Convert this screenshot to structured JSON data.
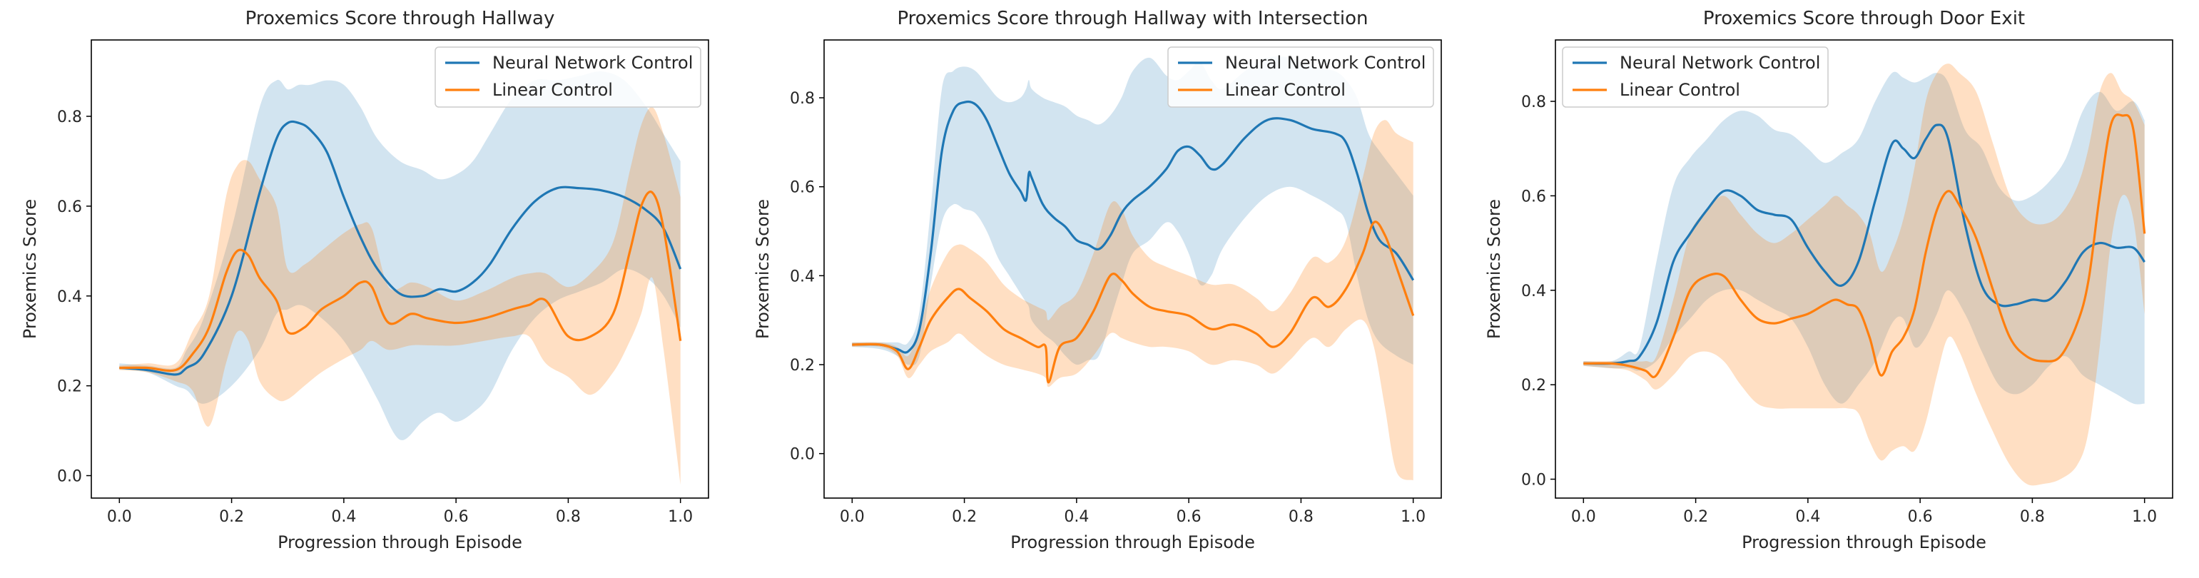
{
  "colors": {
    "nn": "#1f77b4",
    "linear": "#ff7f0e",
    "nn_fill": "#1f77b4",
    "linear_fill": "#ff7f0e"
  },
  "chart_data": [
    {
      "type": "line",
      "title": "Proxemics Score through Hallway",
      "xlabel": "Progression through Episode",
      "ylabel": "Proxemics Score",
      "xlim": [
        -0.05,
        1.05
      ],
      "ylim": [
        -0.05,
        0.97
      ],
      "xticks": [
        "0.0",
        "0.2",
        "0.4",
        "0.6",
        "0.8",
        "1.0"
      ],
      "yticks": [
        "0.0",
        "0.2",
        "0.4",
        "0.6",
        "0.8"
      ],
      "legend": {
        "position": "top-right",
        "entries": [
          "Neural Network Control",
          "Linear Control"
        ]
      },
      "series": [
        {
          "name": "Neural Network Control",
          "x": [
            0.0,
            0.05,
            0.1,
            0.12,
            0.15,
            0.2,
            0.25,
            0.28,
            0.3,
            0.32,
            0.34,
            0.37,
            0.4,
            0.43,
            0.46,
            0.5,
            0.54,
            0.57,
            0.6,
            0.63,
            0.66,
            0.7,
            0.74,
            0.78,
            0.82,
            0.86,
            0.9,
            0.94,
            0.97,
            1.0
          ],
          "y": [
            0.24,
            0.235,
            0.225,
            0.24,
            0.27,
            0.4,
            0.63,
            0.75,
            0.785,
            0.785,
            0.77,
            0.72,
            0.62,
            0.53,
            0.46,
            0.405,
            0.4,
            0.415,
            0.41,
            0.43,
            0.47,
            0.55,
            0.61,
            0.64,
            0.64,
            0.635,
            0.62,
            0.59,
            0.55,
            0.46
          ],
          "lower": [
            0.24,
            0.23,
            0.2,
            0.19,
            0.16,
            0.2,
            0.28,
            0.36,
            0.37,
            0.38,
            0.37,
            0.34,
            0.3,
            0.24,
            0.17,
            0.08,
            0.12,
            0.14,
            0.12,
            0.14,
            0.18,
            0.28,
            0.35,
            0.39,
            0.41,
            0.43,
            0.46,
            0.44,
            0.4,
            0.33
          ],
          "upper": [
            0.25,
            0.245,
            0.24,
            0.28,
            0.35,
            0.55,
            0.82,
            0.88,
            0.86,
            0.87,
            0.87,
            0.88,
            0.87,
            0.82,
            0.75,
            0.7,
            0.68,
            0.66,
            0.67,
            0.7,
            0.76,
            0.84,
            0.88,
            0.88,
            0.89,
            0.9,
            0.88,
            0.82,
            0.76,
            0.7
          ]
        },
        {
          "name": "Linear Control",
          "x": [
            0.0,
            0.05,
            0.1,
            0.13,
            0.16,
            0.19,
            0.21,
            0.23,
            0.25,
            0.28,
            0.3,
            0.33,
            0.36,
            0.4,
            0.43,
            0.45,
            0.48,
            0.52,
            0.55,
            0.6,
            0.65,
            0.7,
            0.73,
            0.76,
            0.8,
            0.84,
            0.88,
            0.91,
            0.93,
            0.95,
            0.97,
            1.0
          ],
          "y": [
            0.24,
            0.24,
            0.235,
            0.27,
            0.33,
            0.45,
            0.5,
            0.49,
            0.44,
            0.39,
            0.32,
            0.33,
            0.37,
            0.4,
            0.43,
            0.42,
            0.34,
            0.36,
            0.35,
            0.34,
            0.35,
            0.37,
            0.38,
            0.39,
            0.31,
            0.31,
            0.36,
            0.5,
            0.6,
            0.63,
            0.55,
            0.3
          ],
          "lower": [
            0.235,
            0.23,
            0.21,
            0.19,
            0.11,
            0.25,
            0.32,
            0.3,
            0.21,
            0.17,
            0.17,
            0.2,
            0.23,
            0.26,
            0.28,
            0.3,
            0.28,
            0.29,
            0.29,
            0.29,
            0.3,
            0.31,
            0.31,
            0.25,
            0.22,
            0.18,
            0.23,
            0.3,
            0.36,
            0.44,
            0.28,
            -0.02
          ],
          "upper": [
            0.245,
            0.25,
            0.25,
            0.32,
            0.4,
            0.62,
            0.69,
            0.7,
            0.66,
            0.6,
            0.46,
            0.47,
            0.5,
            0.54,
            0.56,
            0.55,
            0.42,
            0.43,
            0.42,
            0.39,
            0.41,
            0.44,
            0.45,
            0.45,
            0.42,
            0.45,
            0.52,
            0.68,
            0.78,
            0.82,
            0.76,
            0.62
          ]
        }
      ]
    },
    {
      "type": "line",
      "title": "Proxemics Score through Hallway with Intersection",
      "xlabel": "Progression through Episode",
      "ylabel": "Proxemics Score",
      "xlim": [
        -0.05,
        1.05
      ],
      "ylim": [
        -0.1,
        0.93
      ],
      "xticks": [
        "0.0",
        "0.2",
        "0.4",
        "0.6",
        "0.8",
        "1.0"
      ],
      "yticks": [
        "0.0",
        "0.2",
        "0.4",
        "0.6",
        "0.8"
      ],
      "legend": {
        "position": "top-right",
        "entries": [
          "Neural Network Control",
          "Linear Control"
        ]
      },
      "series": [
        {
          "name": "Neural Network Control",
          "x": [
            0.0,
            0.05,
            0.08,
            0.1,
            0.12,
            0.14,
            0.16,
            0.18,
            0.2,
            0.22,
            0.24,
            0.26,
            0.28,
            0.3,
            0.31,
            0.315,
            0.32,
            0.34,
            0.36,
            0.38,
            0.4,
            0.42,
            0.44,
            0.46,
            0.48,
            0.5,
            0.53,
            0.56,
            0.58,
            0.6,
            0.62,
            0.64,
            0.66,
            0.7,
            0.74,
            0.78,
            0.82,
            0.86,
            0.88,
            0.9,
            0.92,
            0.94,
            0.97,
            1.0
          ],
          "y": [
            0.245,
            0.245,
            0.235,
            0.23,
            0.28,
            0.45,
            0.68,
            0.77,
            0.79,
            0.785,
            0.75,
            0.69,
            0.63,
            0.59,
            0.57,
            0.63,
            0.62,
            0.56,
            0.53,
            0.51,
            0.48,
            0.47,
            0.46,
            0.49,
            0.54,
            0.57,
            0.6,
            0.64,
            0.68,
            0.69,
            0.67,
            0.64,
            0.65,
            0.71,
            0.75,
            0.75,
            0.73,
            0.72,
            0.7,
            0.63,
            0.54,
            0.48,
            0.45,
            0.39
          ],
          "lower": [
            0.24,
            0.235,
            0.22,
            0.2,
            0.22,
            0.38,
            0.52,
            0.56,
            0.55,
            0.54,
            0.5,
            0.44,
            0.4,
            0.36,
            0.34,
            0.33,
            0.3,
            0.27,
            0.25,
            0.22,
            0.2,
            0.21,
            0.22,
            0.3,
            0.38,
            0.45,
            0.48,
            0.52,
            0.5,
            0.45,
            0.38,
            0.4,
            0.46,
            0.53,
            0.58,
            0.6,
            0.58,
            0.55,
            0.52,
            0.4,
            0.3,
            0.25,
            0.22,
            0.2
          ],
          "upper": [
            0.25,
            0.25,
            0.25,
            0.25,
            0.32,
            0.55,
            0.82,
            0.86,
            0.87,
            0.86,
            0.83,
            0.8,
            0.79,
            0.8,
            0.82,
            0.84,
            0.82,
            0.8,
            0.79,
            0.78,
            0.76,
            0.75,
            0.74,
            0.76,
            0.8,
            0.86,
            0.89,
            0.85,
            0.84,
            0.86,
            0.88,
            0.84,
            0.82,
            0.86,
            0.89,
            0.89,
            0.87,
            0.86,
            0.84,
            0.8,
            0.72,
            0.68,
            0.63,
            0.58
          ]
        },
        {
          "name": "Linear Control",
          "x": [
            0.0,
            0.05,
            0.08,
            0.1,
            0.12,
            0.14,
            0.17,
            0.19,
            0.21,
            0.24,
            0.27,
            0.3,
            0.33,
            0.345,
            0.35,
            0.37,
            0.4,
            0.43,
            0.46,
            0.48,
            0.5,
            0.53,
            0.56,
            0.6,
            0.64,
            0.68,
            0.72,
            0.75,
            0.78,
            0.82,
            0.85,
            0.88,
            0.91,
            0.93,
            0.95,
            0.97,
            1.0
          ],
          "y": [
            0.245,
            0.245,
            0.23,
            0.19,
            0.24,
            0.3,
            0.35,
            0.37,
            0.35,
            0.32,
            0.28,
            0.26,
            0.24,
            0.24,
            0.16,
            0.24,
            0.26,
            0.32,
            0.4,
            0.39,
            0.36,
            0.33,
            0.32,
            0.31,
            0.28,
            0.29,
            0.27,
            0.24,
            0.27,
            0.35,
            0.33,
            0.37,
            0.45,
            0.52,
            0.49,
            0.42,
            0.31
          ],
          "lower": [
            0.24,
            0.24,
            0.22,
            0.17,
            0.2,
            0.23,
            0.25,
            0.27,
            0.25,
            0.22,
            0.2,
            0.19,
            0.18,
            0.17,
            0.15,
            0.17,
            0.18,
            0.22,
            0.27,
            0.26,
            0.25,
            0.24,
            0.24,
            0.23,
            0.2,
            0.21,
            0.2,
            0.18,
            0.21,
            0.26,
            0.24,
            0.28,
            0.3,
            0.24,
            0.1,
            -0.04,
            -0.06
          ],
          "upper": [
            0.25,
            0.25,
            0.24,
            0.22,
            0.28,
            0.37,
            0.45,
            0.47,
            0.46,
            0.43,
            0.38,
            0.35,
            0.33,
            0.32,
            0.3,
            0.33,
            0.36,
            0.45,
            0.56,
            0.55,
            0.49,
            0.44,
            0.42,
            0.4,
            0.38,
            0.38,
            0.35,
            0.32,
            0.36,
            0.44,
            0.43,
            0.48,
            0.62,
            0.72,
            0.75,
            0.72,
            0.7
          ]
        }
      ]
    },
    {
      "type": "line",
      "title": "Proxemics Score through Door Exit",
      "xlabel": "Progression through Episode",
      "ylabel": "Proxemics Score",
      "xlim": [
        -0.05,
        1.05
      ],
      "ylim": [
        -0.04,
        0.93
      ],
      "xticks": [
        "0.0",
        "0.2",
        "0.4",
        "0.6",
        "0.8",
        "1.0"
      ],
      "yticks": [
        "0.0",
        "0.2",
        "0.4",
        "0.6",
        "0.8"
      ],
      "legend": {
        "position": "top-left",
        "entries": [
          "Neural Network Control",
          "Linear Control"
        ]
      },
      "series": [
        {
          "name": "Neural Network Control",
          "x": [
            0.0,
            0.05,
            0.08,
            0.1,
            0.13,
            0.16,
            0.19,
            0.22,
            0.25,
            0.28,
            0.31,
            0.34,
            0.37,
            0.4,
            0.43,
            0.46,
            0.49,
            0.52,
            0.55,
            0.57,
            0.59,
            0.61,
            0.63,
            0.65,
            0.68,
            0.71,
            0.74,
            0.77,
            0.8,
            0.83,
            0.86,
            0.89,
            0.92,
            0.95,
            0.98,
            1.0
          ],
          "y": [
            0.245,
            0.245,
            0.25,
            0.26,
            0.33,
            0.46,
            0.52,
            0.57,
            0.61,
            0.6,
            0.57,
            0.56,
            0.55,
            0.49,
            0.44,
            0.41,
            0.46,
            0.59,
            0.71,
            0.7,
            0.68,
            0.72,
            0.75,
            0.72,
            0.54,
            0.41,
            0.37,
            0.37,
            0.38,
            0.38,
            0.42,
            0.48,
            0.5,
            0.49,
            0.49,
            0.46
          ],
          "lower": [
            0.24,
            0.235,
            0.235,
            0.23,
            0.25,
            0.3,
            0.34,
            0.38,
            0.4,
            0.4,
            0.38,
            0.36,
            0.34,
            0.28,
            0.2,
            0.16,
            0.2,
            0.25,
            0.33,
            0.34,
            0.28,
            0.3,
            0.35,
            0.4,
            0.35,
            0.27,
            0.2,
            0.18,
            0.2,
            0.24,
            0.26,
            0.22,
            0.2,
            0.18,
            0.16,
            0.16
          ],
          "upper": [
            0.25,
            0.25,
            0.27,
            0.28,
            0.46,
            0.62,
            0.68,
            0.72,
            0.76,
            0.78,
            0.77,
            0.74,
            0.73,
            0.7,
            0.67,
            0.69,
            0.72,
            0.8,
            0.86,
            0.85,
            0.84,
            0.85,
            0.86,
            0.84,
            0.74,
            0.7,
            0.62,
            0.59,
            0.6,
            0.63,
            0.68,
            0.78,
            0.82,
            0.78,
            0.8,
            0.76
          ]
        },
        {
          "name": "Linear Control",
          "x": [
            0.0,
            0.05,
            0.08,
            0.11,
            0.13,
            0.16,
            0.19,
            0.22,
            0.25,
            0.28,
            0.31,
            0.34,
            0.37,
            0.4,
            0.43,
            0.45,
            0.47,
            0.49,
            0.51,
            0.53,
            0.55,
            0.57,
            0.59,
            0.61,
            0.63,
            0.65,
            0.67,
            0.7,
            0.73,
            0.76,
            0.79,
            0.82,
            0.85,
            0.88,
            0.9,
            0.92,
            0.94,
            0.96,
            0.98,
            1.0
          ],
          "y": [
            0.245,
            0.245,
            0.24,
            0.23,
            0.22,
            0.3,
            0.4,
            0.43,
            0.43,
            0.38,
            0.34,
            0.33,
            0.34,
            0.35,
            0.37,
            0.38,
            0.37,
            0.36,
            0.3,
            0.22,
            0.27,
            0.3,
            0.36,
            0.48,
            0.57,
            0.61,
            0.58,
            0.51,
            0.4,
            0.3,
            0.26,
            0.25,
            0.26,
            0.33,
            0.42,
            0.6,
            0.75,
            0.77,
            0.74,
            0.52
          ],
          "lower": [
            0.24,
            0.235,
            0.23,
            0.21,
            0.19,
            0.22,
            0.26,
            0.27,
            0.25,
            0.2,
            0.16,
            0.15,
            0.15,
            0.15,
            0.15,
            0.15,
            0.15,
            0.14,
            0.08,
            0.04,
            0.06,
            0.07,
            0.06,
            0.12,
            0.22,
            0.3,
            0.27,
            0.18,
            0.1,
            0.03,
            -0.01,
            -0.01,
            0.0,
            0.03,
            0.1,
            0.28,
            0.5,
            0.6,
            0.55,
            0.35
          ],
          "upper": [
            0.25,
            0.25,
            0.25,
            0.25,
            0.26,
            0.38,
            0.52,
            0.57,
            0.6,
            0.56,
            0.52,
            0.5,
            0.52,
            0.55,
            0.58,
            0.6,
            0.58,
            0.56,
            0.52,
            0.44,
            0.48,
            0.55,
            0.66,
            0.8,
            0.86,
            0.88,
            0.86,
            0.82,
            0.71,
            0.6,
            0.55,
            0.54,
            0.56,
            0.62,
            0.7,
            0.82,
            0.86,
            0.82,
            0.8,
            0.75
          ]
        }
      ]
    }
  ]
}
